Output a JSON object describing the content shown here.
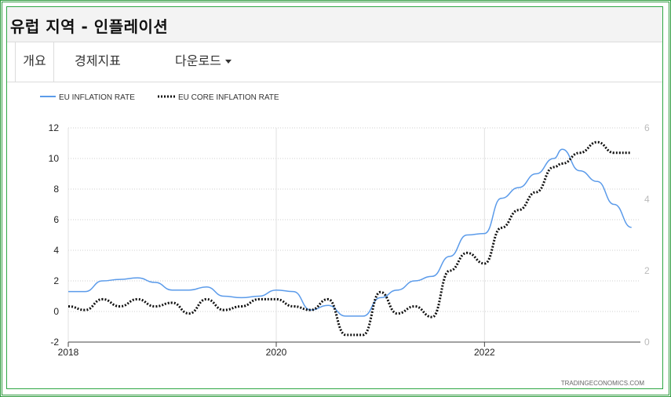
{
  "page": {
    "title": "유럽 지역 - 인플레이션"
  },
  "tabs": [
    {
      "label": "개요"
    },
    {
      "label": "경제지표"
    },
    {
      "label": "다운로드"
    }
  ],
  "legend": [
    "EU INFLATION RATE",
    "EU CORE INFLATION RATE"
  ],
  "watermark": "TRADINGECONOMICS.COM",
  "colors": {
    "inflation": "#5b9bea",
    "core": "#111111",
    "frame": "#2e9b3e"
  },
  "chart_data": {
    "type": "line",
    "x_ticks": [
      "2018",
      "2020",
      "2022"
    ],
    "y_left_ticks": [
      "-2",
      "0",
      "2",
      "4",
      "6",
      "8",
      "10",
      "12"
    ],
    "y_right_ticks": [
      "0",
      "2",
      "4",
      "6"
    ],
    "ylim_left": [
      -2,
      12
    ],
    "ylim_right": [
      0,
      6
    ],
    "grid": "horizontal dotted",
    "legend_position": "top-left",
    "series": [
      {
        "name": "EU INFLATION RATE",
        "axis": "left",
        "style": "solid",
        "x": [
          "2018-01",
          "2018-03",
          "2018-05",
          "2018-07",
          "2018-09",
          "2018-11",
          "2019-01",
          "2019-03",
          "2019-05",
          "2019-07",
          "2019-09",
          "2019-11",
          "2020-01",
          "2020-03",
          "2020-05",
          "2020-07",
          "2020-09",
          "2020-11",
          "2021-01",
          "2021-03",
          "2021-05",
          "2021-07",
          "2021-09",
          "2021-11",
          "2022-01",
          "2022-03",
          "2022-05",
          "2022-07",
          "2022-09",
          "2022-10",
          "2022-12",
          "2023-02",
          "2023-04",
          "2023-06"
        ],
        "values": [
          1.3,
          1.3,
          2.0,
          2.1,
          2.2,
          1.9,
          1.4,
          1.4,
          1.6,
          1.0,
          0.9,
          1.0,
          1.4,
          1.3,
          0.1,
          0.4,
          -0.3,
          -0.3,
          0.9,
          1.4,
          2.0,
          2.3,
          3.6,
          5.0,
          5.1,
          7.4,
          8.1,
          9.0,
          10.0,
          10.6,
          9.2,
          8.5,
          7.0,
          5.5
        ]
      },
      {
        "name": "EU CORE INFLATION RATE",
        "axis": "right",
        "style": "dotted",
        "x": [
          "2018-01",
          "2018-03",
          "2018-05",
          "2018-07",
          "2018-09",
          "2018-11",
          "2019-01",
          "2019-03",
          "2019-05",
          "2019-07",
          "2019-09",
          "2019-11",
          "2020-01",
          "2020-03",
          "2020-05",
          "2020-07",
          "2020-09",
          "2020-11",
          "2021-01",
          "2021-03",
          "2021-05",
          "2021-07",
          "2021-09",
          "2021-11",
          "2022-01",
          "2022-03",
          "2022-05",
          "2022-07",
          "2022-09",
          "2022-10",
          "2022-12",
          "2023-02",
          "2023-04",
          "2023-06"
        ],
        "values": [
          1.0,
          0.9,
          1.2,
          1.0,
          1.2,
          1.0,
          1.1,
          0.8,
          1.2,
          0.9,
          1.0,
          1.2,
          1.2,
          1.0,
          0.9,
          1.2,
          0.2,
          0.2,
          1.4,
          0.8,
          1.0,
          0.7,
          2.0,
          2.5,
          2.2,
          3.2,
          3.7,
          4.2,
          4.9,
          5.0,
          5.3,
          5.6,
          5.3,
          5.3
        ]
      }
    ]
  }
}
